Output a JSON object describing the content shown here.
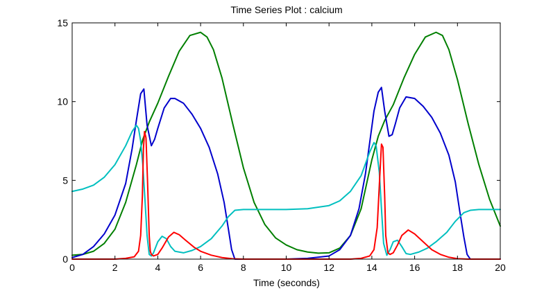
{
  "chart_data": {
    "type": "line",
    "title": "Time Series Plot : calcium",
    "xlabel": "Time (seconds)",
    "ylabel": "",
    "xlim": [
      0,
      20
    ],
    "ylim": [
      0,
      15
    ],
    "xticks": [
      0,
      2,
      4,
      6,
      8,
      10,
      12,
      14,
      16,
      18,
      20
    ],
    "yticks": [
      0,
      5,
      10,
      15
    ],
    "grid": false,
    "series": [
      {
        "name": "green",
        "color": "#007f00",
        "x": [
          0,
          0.5,
          1.0,
          1.5,
          2.0,
          2.5,
          3.0,
          3.3,
          3.6,
          4.0,
          4.5,
          5.0,
          5.5,
          6.0,
          6.3,
          6.6,
          7.0,
          7.5,
          8.0,
          8.5,
          9.0,
          9.5,
          10.0,
          10.5,
          11.0,
          11.5,
          12.0,
          12.5,
          13.0,
          13.5,
          14.0,
          14.3,
          14.6,
          15.0,
          15.5,
          16.0,
          16.5,
          17.0,
          17.3,
          17.6,
          18.0,
          18.5,
          19.0,
          19.5,
          20.0
        ],
        "values": [
          0.25,
          0.3,
          0.5,
          1.0,
          1.9,
          3.6,
          6.0,
          7.6,
          8.7,
          9.9,
          11.6,
          13.2,
          14.2,
          14.4,
          14.1,
          13.3,
          11.5,
          8.6,
          5.8,
          3.6,
          2.2,
          1.35,
          0.9,
          0.6,
          0.45,
          0.38,
          0.4,
          0.7,
          1.5,
          3.2,
          6.3,
          7.8,
          8.8,
          9.8,
          11.5,
          13.0,
          14.1,
          14.4,
          14.2,
          13.3,
          11.4,
          8.6,
          6.0,
          3.8,
          2.1
        ]
      },
      {
        "name": "blue",
        "color": "#0000cc",
        "x": [
          0,
          0.5,
          1.0,
          1.5,
          2.0,
          2.5,
          2.8,
          3.0,
          3.2,
          3.35,
          3.5,
          3.7,
          3.85,
          4.0,
          4.3,
          4.6,
          4.8,
          5.2,
          5.6,
          6.0,
          6.4,
          6.8,
          7.1,
          7.3,
          7.45,
          7.6,
          8.0,
          9.0,
          10.0,
          11.0,
          12.0,
          12.5,
          13.0,
          13.4,
          13.7,
          13.9,
          14.1,
          14.3,
          14.45,
          14.6,
          14.8,
          14.95,
          15.1,
          15.3,
          15.6,
          16.0,
          16.4,
          16.8,
          17.2,
          17.6,
          17.9,
          18.1,
          18.3,
          18.45,
          18.6,
          19.0,
          20.0
        ],
        "values": [
          0.1,
          0.3,
          0.8,
          1.6,
          2.8,
          4.8,
          7.0,
          8.8,
          10.5,
          10.8,
          8.5,
          7.2,
          7.6,
          8.3,
          9.6,
          10.2,
          10.2,
          9.9,
          9.2,
          8.3,
          7.1,
          5.4,
          3.6,
          1.9,
          0.6,
          0.0,
          0.0,
          0.0,
          0.0,
          0.05,
          0.2,
          0.6,
          1.5,
          3.2,
          5.4,
          7.4,
          9.4,
          10.6,
          10.9,
          9.4,
          7.8,
          7.9,
          8.6,
          9.6,
          10.3,
          10.2,
          9.7,
          9.0,
          8.0,
          6.6,
          4.9,
          3.1,
          1.4,
          0.3,
          0.0,
          0.0,
          0.0
        ]
      },
      {
        "name": "cyan",
        "color": "#00bfbf",
        "x": [
          0,
          0.5,
          1.0,
          1.5,
          2.0,
          2.5,
          2.8,
          3.0,
          3.1,
          3.2,
          3.3,
          3.4,
          3.5,
          3.6,
          3.7,
          3.8,
          4.0,
          4.2,
          4.4,
          4.6,
          4.8,
          5.2,
          5.6,
          6.0,
          6.5,
          7.0,
          7.3,
          7.6,
          8.0,
          9.0,
          10.0,
          11.0,
          12.0,
          12.5,
          13.0,
          13.5,
          13.9,
          14.1,
          14.2,
          14.35,
          14.45,
          14.55,
          14.7,
          14.85,
          15.0,
          15.2,
          15.4,
          15.6,
          15.8,
          16.2,
          16.6,
          17.0,
          17.5,
          17.9,
          18.3,
          18.6,
          19.0,
          20.0
        ],
        "values": [
          4.3,
          4.45,
          4.7,
          5.2,
          6.0,
          7.2,
          8.1,
          8.5,
          8.3,
          7.5,
          6.0,
          3.8,
          1.5,
          0.3,
          0.2,
          0.4,
          1.1,
          1.45,
          1.3,
          0.8,
          0.5,
          0.4,
          0.55,
          0.8,
          1.3,
          2.1,
          2.7,
          3.1,
          3.15,
          3.15,
          3.15,
          3.2,
          3.4,
          3.7,
          4.3,
          5.3,
          6.8,
          7.4,
          7.2,
          5.5,
          3.2,
          1.0,
          0.25,
          0.6,
          1.1,
          1.2,
          0.8,
          0.35,
          0.3,
          0.45,
          0.7,
          1.1,
          1.7,
          2.4,
          2.95,
          3.1,
          3.15,
          3.15
        ]
      },
      {
        "name": "red",
        "color": "#ff0000",
        "x": [
          0,
          1.0,
          2.0,
          2.5,
          2.9,
          3.1,
          3.2,
          3.28,
          3.33,
          3.38,
          3.45,
          3.52,
          3.6,
          3.65,
          3.7,
          3.8,
          4.0,
          4.2,
          4.5,
          4.75,
          5.0,
          5.3,
          5.7,
          6.0,
          6.5,
          7.0,
          7.5,
          8.0,
          9.0,
          10.0,
          11.0,
          12.0,
          13.0,
          13.5,
          13.9,
          14.1,
          14.25,
          14.38,
          14.45,
          14.52,
          14.6,
          14.65,
          14.75,
          14.85,
          15.0,
          15.2,
          15.4,
          15.7,
          16.0,
          16.4,
          16.8,
          17.2,
          17.6,
          18.0,
          18.5,
          19.0,
          20.0
        ],
        "values": [
          0.0,
          0.0,
          0.0,
          0.05,
          0.15,
          0.5,
          1.5,
          4.0,
          7.0,
          8.1,
          7.7,
          5.0,
          1.5,
          0.5,
          0.3,
          0.2,
          0.3,
          0.7,
          1.4,
          1.7,
          1.55,
          1.2,
          0.75,
          0.5,
          0.25,
          0.1,
          0.02,
          0.0,
          0.0,
          0.0,
          0.0,
          0.0,
          0.0,
          0.05,
          0.2,
          0.6,
          2.0,
          5.5,
          7.3,
          7.1,
          4.0,
          1.5,
          0.4,
          0.3,
          0.4,
          0.9,
          1.5,
          1.85,
          1.6,
          1.1,
          0.6,
          0.3,
          0.12,
          0.03,
          0.0,
          0.0,
          0.0
        ]
      }
    ]
  }
}
